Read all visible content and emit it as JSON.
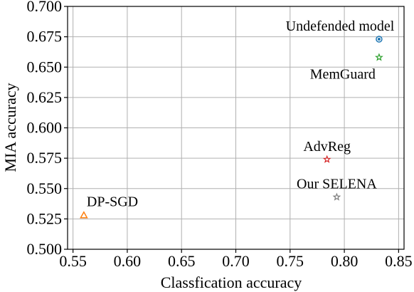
{
  "chart_data": {
    "type": "scatter",
    "title": "",
    "xlabel": "Classfication accuracy",
    "ylabel": "MIA accuracy",
    "xlim": [
      0.545,
      0.855
    ],
    "ylim": [
      0.5,
      0.7
    ],
    "xticks": [
      "0.55",
      "0.60",
      "0.65",
      "0.70",
      "0.75",
      "0.80",
      "0.85"
    ],
    "yticks": [
      "0.500",
      "0.525",
      "0.550",
      "0.575",
      "0.600",
      "0.625",
      "0.650",
      "0.675",
      "0.700"
    ],
    "grid": true,
    "points": [
      {
        "label": "Undefended model",
        "x": 0.832,
        "y": 0.673,
        "marker": "circle",
        "color": "#1f77b4",
        "label_anchor": "above"
      },
      {
        "label": "MemGuard",
        "x": 0.832,
        "y": 0.658,
        "marker": "star",
        "color": "#2ca02c",
        "label_anchor": "below-left"
      },
      {
        "label": "AdvReg",
        "x": 0.784,
        "y": 0.574,
        "marker": "star",
        "color": "#d62728",
        "label_anchor": "above"
      },
      {
        "label": "Our SELENA",
        "x": 0.793,
        "y": 0.543,
        "marker": "star",
        "color": "#7f7f7f",
        "label_anchor": "above"
      },
      {
        "label": "DP-SGD",
        "x": 0.56,
        "y": 0.528,
        "marker": "triangle",
        "color": "#ff7f0e",
        "label_anchor": "above-right"
      }
    ]
  }
}
